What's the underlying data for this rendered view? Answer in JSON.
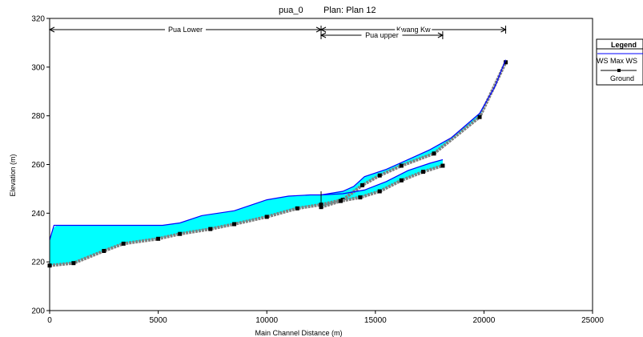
{
  "chart_data": {
    "type": "line",
    "title_left": "pua_0",
    "title_right": "Plan: Plan 12",
    "xlabel": "Main Channel Distance (m)",
    "ylabel": "Elevation (m)",
    "xlim": [
      0,
      25000
    ],
    "ylim": [
      200,
      320
    ],
    "xticks": [
      0,
      5000,
      10000,
      15000,
      20000,
      25000
    ],
    "yticks": [
      200,
      220,
      240,
      260,
      280,
      300,
      320
    ],
    "grid": false,
    "reaches": [
      {
        "name": "Pua Lower",
        "start": 0,
        "end": 12500,
        "row": 0
      },
      {
        "name": "Kwang Kw",
        "start": 12500,
        "end": 21000,
        "row": 0
      },
      {
        "name": "Pua upper",
        "start": 12500,
        "end": 18100,
        "row": 1
      }
    ],
    "legend": {
      "title": "Legend",
      "entries": [
        {
          "label": "WS  Max WS",
          "color": "#0000ff",
          "marker": "none"
        },
        {
          "label": "Ground",
          "color": "#000000",
          "marker": "square"
        }
      ],
      "placement": "right"
    },
    "colors": {
      "water": "#00ffff",
      "ws_line": "#0000ff",
      "ground": "#808080",
      "ground_marker": "#000000"
    },
    "series": [
      {
        "name": "WS  Max WS",
        "reach": "Pua Lower",
        "x": [
          0,
          200,
          1000,
          3000,
          5200,
          6000,
          7000,
          8500,
          10000,
          11000,
          12000,
          12500
        ],
        "y": [
          229,
          235,
          235,
          235,
          235,
          236,
          239,
          241,
          245.5,
          247,
          247.5,
          247.5
        ]
      },
      {
        "name": "Ground",
        "reach": "Pua Lower",
        "x": [
          0,
          1100,
          2500,
          3400,
          5000,
          6000,
          7400,
          8500,
          10000,
          11400,
          12500
        ],
        "y": [
          218.5,
          219.5,
          224.5,
          227.5,
          229.5,
          231.5,
          233.5,
          235.5,
          238.5,
          242,
          243.5
        ]
      },
      {
        "name": "WS  Max WS",
        "reach": "Kwang Kw",
        "x": [
          12500,
          13500,
          14000,
          14500,
          15500,
          16500,
          17500,
          18500,
          19800,
          20500,
          21000
        ],
        "y": [
          247.5,
          249,
          251,
          255,
          258,
          262,
          266,
          271,
          281,
          292,
          303
        ]
      },
      {
        "name": "Ground",
        "reach": "Kwang Kw",
        "x": [
          12500,
          13500,
          14400,
          15200,
          16200,
          17700,
          19800,
          21000
        ],
        "y": [
          243.5,
          245.5,
          251.5,
          255.5,
          259.5,
          264.5,
          279.5,
          302
        ]
      },
      {
        "name": "WS  Max WS",
        "reach": "Pua upper",
        "x": [
          12500,
          13500,
          14500,
          15500,
          16500,
          17500,
          18100
        ],
        "y": [
          247.5,
          248,
          249.5,
          253,
          257.5,
          260.5,
          262
        ]
      },
      {
        "name": "Ground",
        "reach": "Pua upper",
        "x": [
          12500,
          13400,
          14300,
          15200,
          16200,
          17200,
          18100
        ],
        "y": [
          242.5,
          245,
          246.5,
          249,
          253.5,
          257,
          259.5
        ]
      }
    ]
  }
}
